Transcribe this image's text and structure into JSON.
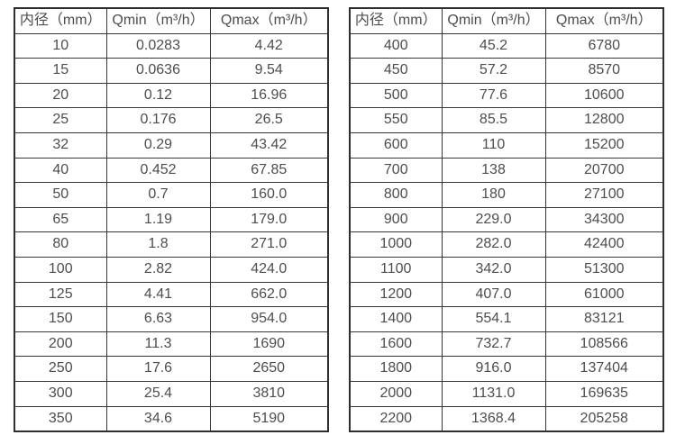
{
  "page": {
    "background": "#ffffff",
    "text_color": "#4d4d4d",
    "border_color": "#383838"
  },
  "tables": [
    {
      "id": "small-diameters",
      "headers": [
        "内径（mm）",
        "Qmin（m³/h）",
        "Qmax（m³/h）"
      ],
      "rows": [
        [
          "10",
          "0.0283",
          "4.42"
        ],
        [
          "15",
          "0.0636",
          "9.54"
        ],
        [
          "20",
          "0.12",
          "16.96"
        ],
        [
          "25",
          "0.176",
          "26.5"
        ],
        [
          "32",
          "0.29",
          "43.42"
        ],
        [
          "40",
          "0.452",
          "67.85"
        ],
        [
          "50",
          "0.7",
          "160.0"
        ],
        [
          "65",
          "1.19",
          "179.0"
        ],
        [
          "80",
          "1.8",
          "271.0"
        ],
        [
          "100",
          "2.82",
          "424.0"
        ],
        [
          "125",
          "4.41",
          "662.0"
        ],
        [
          "150",
          "6.63",
          "954.0"
        ],
        [
          "200",
          "11.3",
          "1690"
        ],
        [
          "250",
          "17.6",
          "2650"
        ],
        [
          "300",
          "25.4",
          "3810"
        ],
        [
          "350",
          "34.6",
          "5190"
        ]
      ]
    },
    {
      "id": "large-diameters",
      "headers": [
        "内径（mm）",
        "Qmin（m³/h）",
        "Qmax（m³/h）"
      ],
      "rows": [
        [
          "400",
          "45.2",
          "6780"
        ],
        [
          "450",
          "57.2",
          "8570"
        ],
        [
          "500",
          "77.6",
          "10600"
        ],
        [
          "550",
          "85.5",
          "12800"
        ],
        [
          "600",
          "110",
          "15200"
        ],
        [
          "700",
          "138",
          "20700"
        ],
        [
          "800",
          "180",
          "27100"
        ],
        [
          "900",
          "229.0",
          "34300"
        ],
        [
          "1000",
          "282.0",
          "42400"
        ],
        [
          "1100",
          "342.0",
          "51300"
        ],
        [
          "1200",
          "407.0",
          "61000"
        ],
        [
          "1400",
          "554.1",
          "83121"
        ],
        [
          "1600",
          "732.7",
          "108566"
        ],
        [
          "1800",
          "916.0",
          "137404"
        ],
        [
          "2000",
          "1131.0",
          "169635"
        ],
        [
          "2200",
          "1368.4",
          "205258"
        ]
      ]
    }
  ]
}
